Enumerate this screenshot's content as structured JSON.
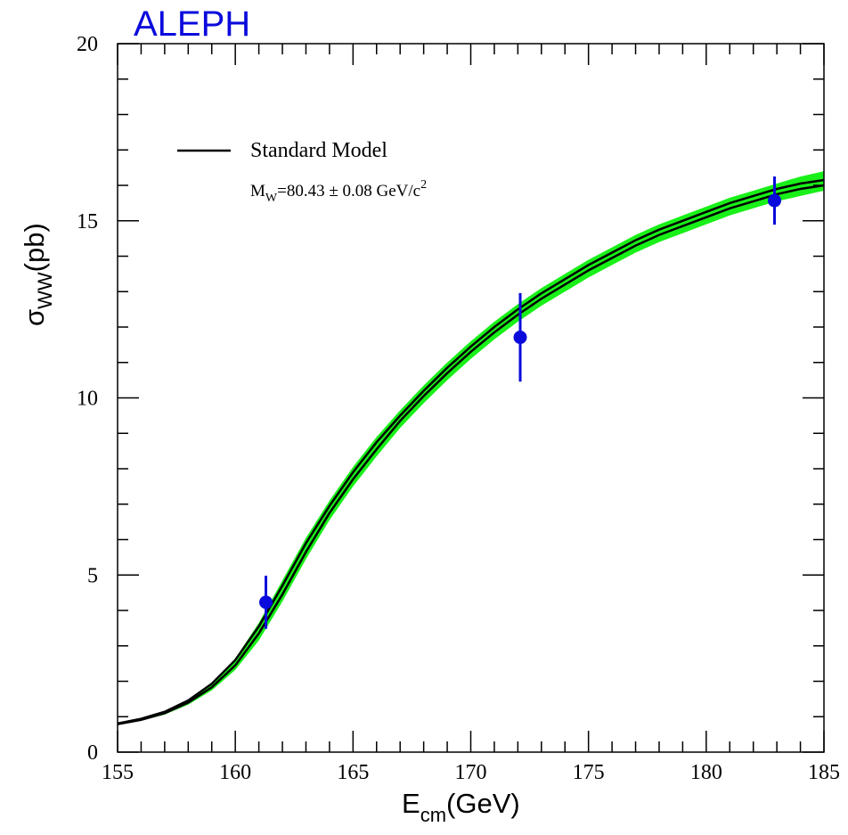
{
  "chart_data": {
    "type": "line",
    "title": "ALEPH",
    "xlabel": {
      "main": "E",
      "sub": "cm",
      "rest": "(GeV)"
    },
    "ylabel": {
      "main": "σ",
      "sub": "WW",
      "rest": "(pb)"
    },
    "xlim": [
      155,
      185
    ],
    "ylim": [
      0,
      20
    ],
    "x_ticks": [
      155,
      160,
      165,
      170,
      175,
      180,
      185
    ],
    "y_ticks": [
      0,
      5,
      10,
      15,
      20
    ],
    "x_tick_labels": [
      "155",
      "160",
      "165",
      "170",
      "175",
      "180",
      "185"
    ],
    "y_tick_labels": [
      "0",
      "5",
      "10",
      "15",
      "20"
    ],
    "grid": false,
    "legend": {
      "position": "top-left",
      "label": "Standard Model",
      "note_main": "M",
      "note_sub": "W",
      "note_rest": "=80.43 ± 0.08 GeV/c",
      "note_sup": "2"
    },
    "series": [
      {
        "name": "Standard Model",
        "kind": "band-with-curves",
        "x": [
          155,
          156,
          157,
          158,
          159,
          160,
          161,
          162,
          163,
          164,
          165,
          166,
          167,
          168,
          169,
          170,
          171,
          172,
          173,
          174,
          175,
          176,
          177,
          178,
          179,
          180,
          181,
          182,
          183,
          184,
          185
        ],
        "upper": [
          0.82,
          0.95,
          1.15,
          1.48,
          1.95,
          2.65,
          3.65,
          4.85,
          6.05,
          7.1,
          8.05,
          8.9,
          9.65,
          10.35,
          11.0,
          11.6,
          12.15,
          12.65,
          13.1,
          13.5,
          13.9,
          14.25,
          14.6,
          14.9,
          15.15,
          15.4,
          15.65,
          15.85,
          16.05,
          16.25,
          16.4
        ],
        "curve_high": [
          0.81,
          0.94,
          1.14,
          1.46,
          1.93,
          2.6,
          3.55,
          4.7,
          5.9,
          6.95,
          7.9,
          8.75,
          9.5,
          10.2,
          10.85,
          11.45,
          12.0,
          12.5,
          12.95,
          13.35,
          13.75,
          14.1,
          14.45,
          14.75,
          15.0,
          15.25,
          15.5,
          15.7,
          15.9,
          16.05,
          16.15
        ],
        "curve_low": [
          0.79,
          0.91,
          1.1,
          1.4,
          1.83,
          2.45,
          3.35,
          4.45,
          5.65,
          6.75,
          7.7,
          8.55,
          9.35,
          10.05,
          10.7,
          11.3,
          11.85,
          12.35,
          12.8,
          13.2,
          13.6,
          13.95,
          14.3,
          14.6,
          14.85,
          15.1,
          15.35,
          15.55,
          15.75,
          15.9,
          16.0
        ],
        "lower": [
          0.77,
          0.89,
          1.06,
          1.34,
          1.74,
          2.32,
          3.15,
          4.25,
          5.45,
          6.55,
          7.5,
          8.35,
          9.15,
          9.85,
          10.5,
          11.1,
          11.65,
          12.15,
          12.6,
          13.0,
          13.4,
          13.75,
          14.1,
          14.4,
          14.65,
          14.9,
          15.15,
          15.35,
          15.55,
          15.7,
          15.85
        ]
      },
      {
        "kind": "points",
        "x": [
          161.3,
          172.1,
          182.9
        ],
        "y": [
          4.23,
          11.71,
          15.57
        ],
        "err": [
          0.75,
          1.25,
          0.68
        ]
      }
    ],
    "colors": {
      "band": "#19f019",
      "curve": "#000000",
      "points": "#0a0adc",
      "title": "#0a0adc",
      "axis": "#000000"
    }
  }
}
